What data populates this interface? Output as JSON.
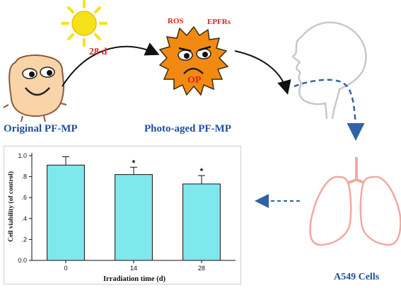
{
  "labels": {
    "original": "Original  PF-MP",
    "photo_aged": "Photo-aged  PF-MP",
    "days": "28 d",
    "ros": "ROS",
    "epfrs": "EPFRs",
    "op": "OP",
    "cells": "A549  Cells"
  },
  "colors": {
    "sun": "#f5e218",
    "aged_particle": "#f28a12",
    "original_particle": "#f9d4a8",
    "lung": "#f1a9a0",
    "bar": "#7fe8ec",
    "dark_blue": "#1f4e9a",
    "red": "#e0211b",
    "head_outline": "#c8c8c8"
  },
  "chart_data": {
    "type": "bar",
    "categories": [
      "0",
      "14",
      "28"
    ],
    "values": [
      0.91,
      0.82,
      0.73
    ],
    "errors": [
      0.08,
      0.07,
      0.08
    ],
    "significance": [
      "",
      "*",
      "*"
    ],
    "xlabel": "Irradiation time (d)",
    "ylabel": "Cell viability (of control)",
    "ylim": [
      0,
      1.0
    ],
    "yticks": [
      "0.0",
      ".2",
      ".4",
      ".6",
      ".8",
      "1.0"
    ],
    "grid": false
  }
}
